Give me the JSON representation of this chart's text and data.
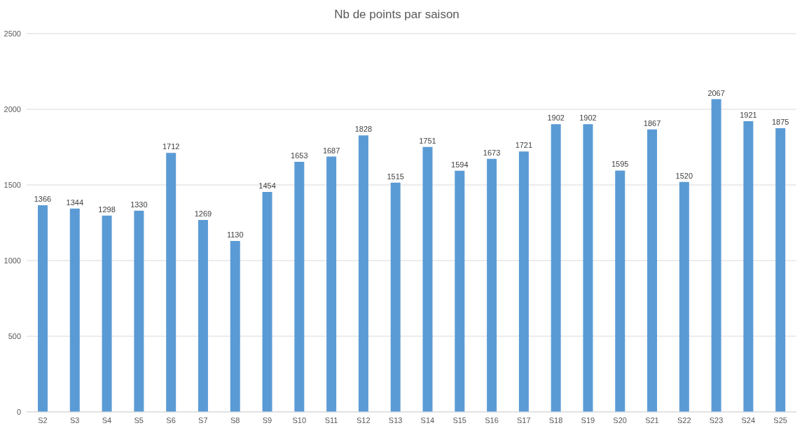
{
  "chart_data": {
    "type": "bar",
    "title": "Nb de points par saison",
    "categories": [
      "S2",
      "S3",
      "S4",
      "S5",
      "S6",
      "S7",
      "S8",
      "S9",
      "S10",
      "S11",
      "S12",
      "S13",
      "S14",
      "S15",
      "S16",
      "S17",
      "S18",
      "S19",
      "S20",
      "S21",
      "S22",
      "S23",
      "S24",
      "S25"
    ],
    "values": [
      1366,
      1344,
      1298,
      1330,
      1712,
      1269,
      1130,
      1454,
      1653,
      1687,
      1828,
      1515,
      1751,
      1594,
      1673,
      1721,
      1902,
      1902,
      1595,
      1867,
      1520,
      2067,
      1921,
      1875
    ],
    "color": "#5b9bd5",
    "ylim": [
      0,
      2500
    ],
    "yticks": [
      0,
      500,
      1000,
      1500,
      2000,
      2500
    ],
    "grid": "y",
    "data_labels": true,
    "legend": false
  }
}
